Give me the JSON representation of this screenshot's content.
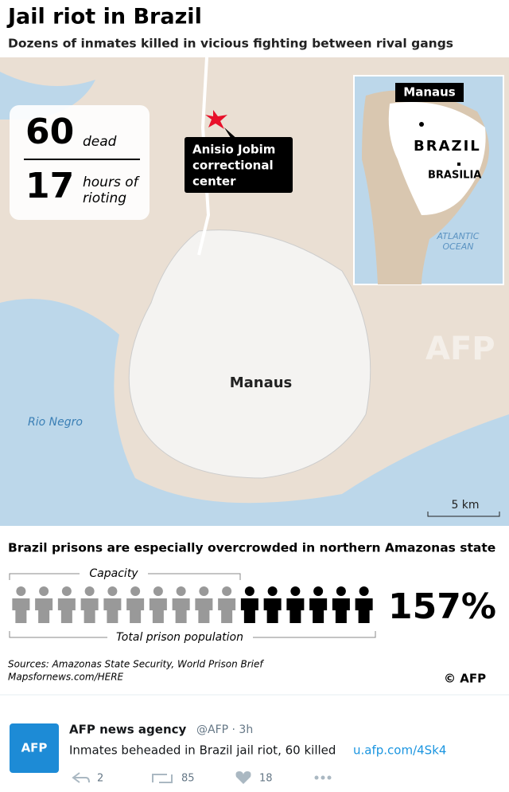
{
  "infographic": {
    "title": "Jail riot in Brazil",
    "subtitle": "Dozens of inmates killed in vicious fighting between rival gangs",
    "stats": {
      "dead_number": "60",
      "dead_label": "dead",
      "hours_number": "17",
      "hours_label_1": "hours of",
      "hours_label_2": "rioting"
    },
    "map": {
      "prison_label": [
        "Anisio Jobim",
        "correctional",
        "center"
      ],
      "city": "Manaus",
      "river": "Rio Negro",
      "scale": "5 km",
      "watermark": "AFP",
      "inset": {
        "city": "Manaus",
        "country": "BRAZIL",
        "capital": "BRASILIA",
        "ocean": [
          "ATLANTIC",
          "OCEAN"
        ]
      }
    },
    "pictogram": {
      "heading": "Brazil prisons are especially overcrowded in northern Amazonas state",
      "capacity_label": "Capacity",
      "population_label": "Total prison population",
      "percentage": "157%",
      "capacity_figures": 10,
      "population_figures": 16
    },
    "sources": [
      "Sources: Amazonas State Security, World Prison Brief",
      "Mapsfornews.com/HERE"
    ],
    "credit": "© AFP"
  },
  "tweet": {
    "avatar": "AFP",
    "name": "AFP news agency",
    "handle": "@AFP · 3h",
    "text": "Inmates beheaded in Brazil jail riot, 60 killed",
    "link": "u.afp.com/4Sk4",
    "replies": "2",
    "retweets": "85",
    "likes": "18"
  }
}
